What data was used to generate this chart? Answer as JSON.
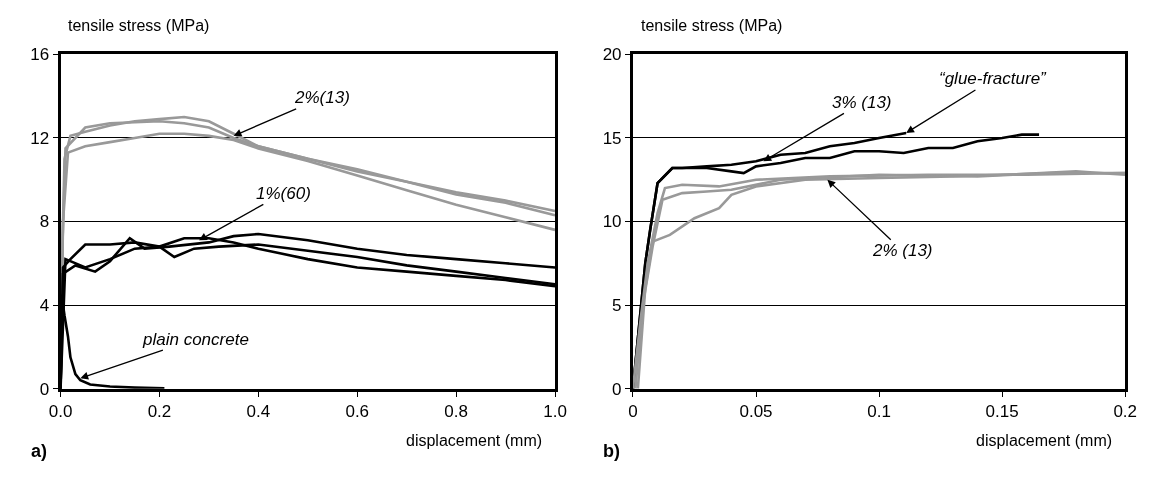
{
  "chart_data": [
    {
      "type": "line",
      "ylabel": "tensile stress (MPa)",
      "xlabel": "displacement (mm)",
      "xlim": [
        0,
        1.0
      ],
      "xticks": [
        {
          "value": 0,
          "label": "0.0"
        },
        0.2,
        0.4,
        0.6,
        0.8,
        {
          "value": 1.0,
          "label": "1.0"
        }
      ],
      "ylim": [
        0,
        16
      ],
      "yticks": [
        0,
        4,
        8,
        12,
        16
      ],
      "grid": "y",
      "marker": "none",
      "line_style": "solid",
      "series": [
        {
          "color": "#999999",
          "x": [
            0,
            0.003,
            0.008,
            0.02,
            0.05,
            0.1,
            0.15,
            0.2,
            0.25,
            0.3,
            0.35,
            0.4,
            0.5,
            0.6,
            0.7,
            0.8,
            0.9,
            1.0
          ],
          "values": [
            0,
            6,
            11,
            12.1,
            12.3,
            12.6,
            12.8,
            12.9,
            13.0,
            12.8,
            12.2,
            11.6,
            11.0,
            10.4,
            9.9,
            9.4,
            9.0,
            8.5
          ]
        },
        {
          "color": "#999999",
          "x": [
            0,
            0.004,
            0.01,
            0.05,
            0.1,
            0.2,
            0.25,
            0.3,
            0.35,
            0.4,
            0.5,
            0.6,
            0.7,
            0.8,
            0.9,
            1.0
          ],
          "values": [
            0,
            7,
            11.5,
            12.5,
            12.7,
            12.8,
            12.7,
            12.5,
            12.0,
            11.6,
            11.0,
            10.5,
            9.9,
            9.3,
            8.9,
            8.3
          ]
        },
        {
          "color": "#999999",
          "x": [
            0,
            0.005,
            0.015,
            0.05,
            0.1,
            0.15,
            0.2,
            0.25,
            0.3,
            0.35,
            0.4,
            0.5,
            0.6,
            0.7,
            0.8,
            0.9,
            1.0
          ],
          "values": [
            0,
            8,
            11.3,
            11.6,
            11.8,
            12.0,
            12.2,
            12.2,
            12.1,
            11.9,
            11.5,
            10.9,
            10.2,
            9.5,
            8.8,
            8.2,
            7.6
          ]
        },
        {
          "color": "#000000",
          "x": [
            0,
            0.005,
            0.02,
            0.05,
            0.1,
            0.15,
            0.2,
            0.25,
            0.3,
            0.35,
            0.4,
            0.5,
            0.6,
            0.7,
            0.8,
            0.9,
            1.0
          ],
          "values": [
            0,
            5.8,
            6.2,
            6.9,
            6.9,
            7.0,
            6.8,
            7.2,
            7.2,
            7.0,
            6.7,
            6.2,
            5.8,
            5.6,
            5.4,
            5.2,
            4.9
          ]
        },
        {
          "color": "#000000",
          "x": [
            0,
            0.005,
            0.03,
            0.07,
            0.1,
            0.14,
            0.17,
            0.22,
            0.3,
            0.35,
            0.4,
            0.5,
            0.6,
            0.7,
            0.8,
            0.9,
            1.0
          ],
          "values": [
            0,
            5.5,
            5.9,
            5.6,
            6.1,
            7.2,
            6.7,
            6.8,
            7.0,
            7.3,
            7.4,
            7.1,
            6.7,
            6.4,
            6.2,
            6.0,
            5.8
          ]
        },
        {
          "color": "#000000",
          "x": [
            0,
            0.01,
            0.05,
            0.1,
            0.15,
            0.2,
            0.23,
            0.27,
            0.32,
            0.4,
            0.5,
            0.6,
            0.7,
            0.8,
            0.9,
            1.0
          ],
          "values": [
            0,
            6.2,
            5.8,
            6.2,
            6.7,
            6.8,
            6.3,
            6.7,
            6.8,
            6.9,
            6.6,
            6.3,
            5.9,
            5.6,
            5.3,
            5.0
          ]
        },
        {
          "color": "#000000",
          "x": [
            0,
            0.002,
            0.008,
            0.015,
            0.02,
            0.03,
            0.04,
            0.06,
            0.1,
            0.15,
            0.21
          ],
          "values": [
            0,
            4.5,
            3.5,
            2.5,
            1.5,
            0.7,
            0.4,
            0.2,
            0.1,
            0.05,
            0.02
          ]
        }
      ],
      "annotations": [
        {
          "text": "2%(13)",
          "x": 0.35,
          "y": 12.1
        },
        {
          "text": "1%(60)",
          "x": 0.28,
          "y": 7.1
        },
        {
          "text": "plain concrete",
          "x": 0.04,
          "y": 0.5
        },
        "a)"
      ]
    },
    {
      "type": "line",
      "ylabel": "tensile stress (MPa)",
      "xlabel": "displacement (mm)",
      "xlim": [
        0,
        0.2
      ],
      "xticks": [
        0,
        0.05,
        0.1,
        0.15,
        0.2
      ],
      "ylim": [
        0,
        20
      ],
      "yticks": [
        0,
        5,
        10,
        15,
        20
      ],
      "grid": "y",
      "marker": "none",
      "line_style": "solid",
      "series": [
        {
          "color": "#000000",
          "x": [
            0,
            0.002,
            0.005,
            0.007,
            0.01,
            0.016,
            0.02,
            0.03,
            0.04,
            0.05,
            0.06,
            0.07,
            0.08,
            0.09,
            0.1,
            0.111
          ],
          "values": [
            0,
            3,
            7.5,
            9.5,
            12.3,
            13.2,
            13.2,
            13.3,
            13.4,
            13.6,
            14.0,
            14.1,
            14.5,
            14.7,
            15.0,
            15.3
          ]
        },
        {
          "color": "#000000",
          "x": [
            0,
            0.002,
            0.005,
            0.007,
            0.01,
            0.016,
            0.03,
            0.04,
            0.045,
            0.05,
            0.06,
            0.07,
            0.08,
            0.09,
            0.1,
            0.11,
            0.12,
            0.13,
            0.14,
            0.15,
            0.158,
            0.165
          ],
          "values": [
            0,
            3,
            7.5,
            9.5,
            12.3,
            13.2,
            13.2,
            13.0,
            12.9,
            13.3,
            13.5,
            13.8,
            13.8,
            14.2,
            14.2,
            14.1,
            14.4,
            14.4,
            14.8,
            15.0,
            15.2,
            15.2
          ]
        },
        {
          "color": "#999999",
          "x": [
            0,
            0.003,
            0.006,
            0.01,
            0.013,
            0.02,
            0.035,
            0.05,
            0.08,
            0.12,
            0.16,
            0.2
          ],
          "values": [
            0,
            4,
            7.5,
            10.5,
            12.0,
            12.2,
            12.1,
            12.5,
            12.7,
            12.8,
            12.8,
            12.9
          ]
        },
        {
          "color": "#999999",
          "x": [
            0.001,
            0.004,
            0.008,
            0.012,
            0.02,
            0.03,
            0.04,
            0.06,
            0.1,
            0.14,
            0.18,
            0.2
          ],
          "values": [
            0,
            5,
            8.5,
            11.3,
            11.7,
            11.8,
            11.9,
            12.5,
            12.8,
            12.7,
            13.0,
            12.8
          ]
        },
        {
          "color": "#999999",
          "x": [
            0.002,
            0.005,
            0.008,
            0.015,
            0.025,
            0.035,
            0.04,
            0.05,
            0.07,
            0.1,
            0.13,
            0.17,
            0.2
          ],
          "values": [
            0,
            6,
            8.8,
            9.2,
            10.2,
            10.8,
            11.6,
            12.1,
            12.5,
            12.6,
            12.7,
            12.9,
            12.9
          ]
        }
      ],
      "annotations": [
        {
          "text": "3% (13)",
          "x": 0.053,
          "y": 13.6
        },
        {
          "text": "2% (13)",
          "x": 0.079,
          "y": 12.5
        },
        {
          "text": "“glue-fracture”",
          "x": 0.111,
          "y": 15.3
        },
        "b)"
      ]
    }
  ]
}
